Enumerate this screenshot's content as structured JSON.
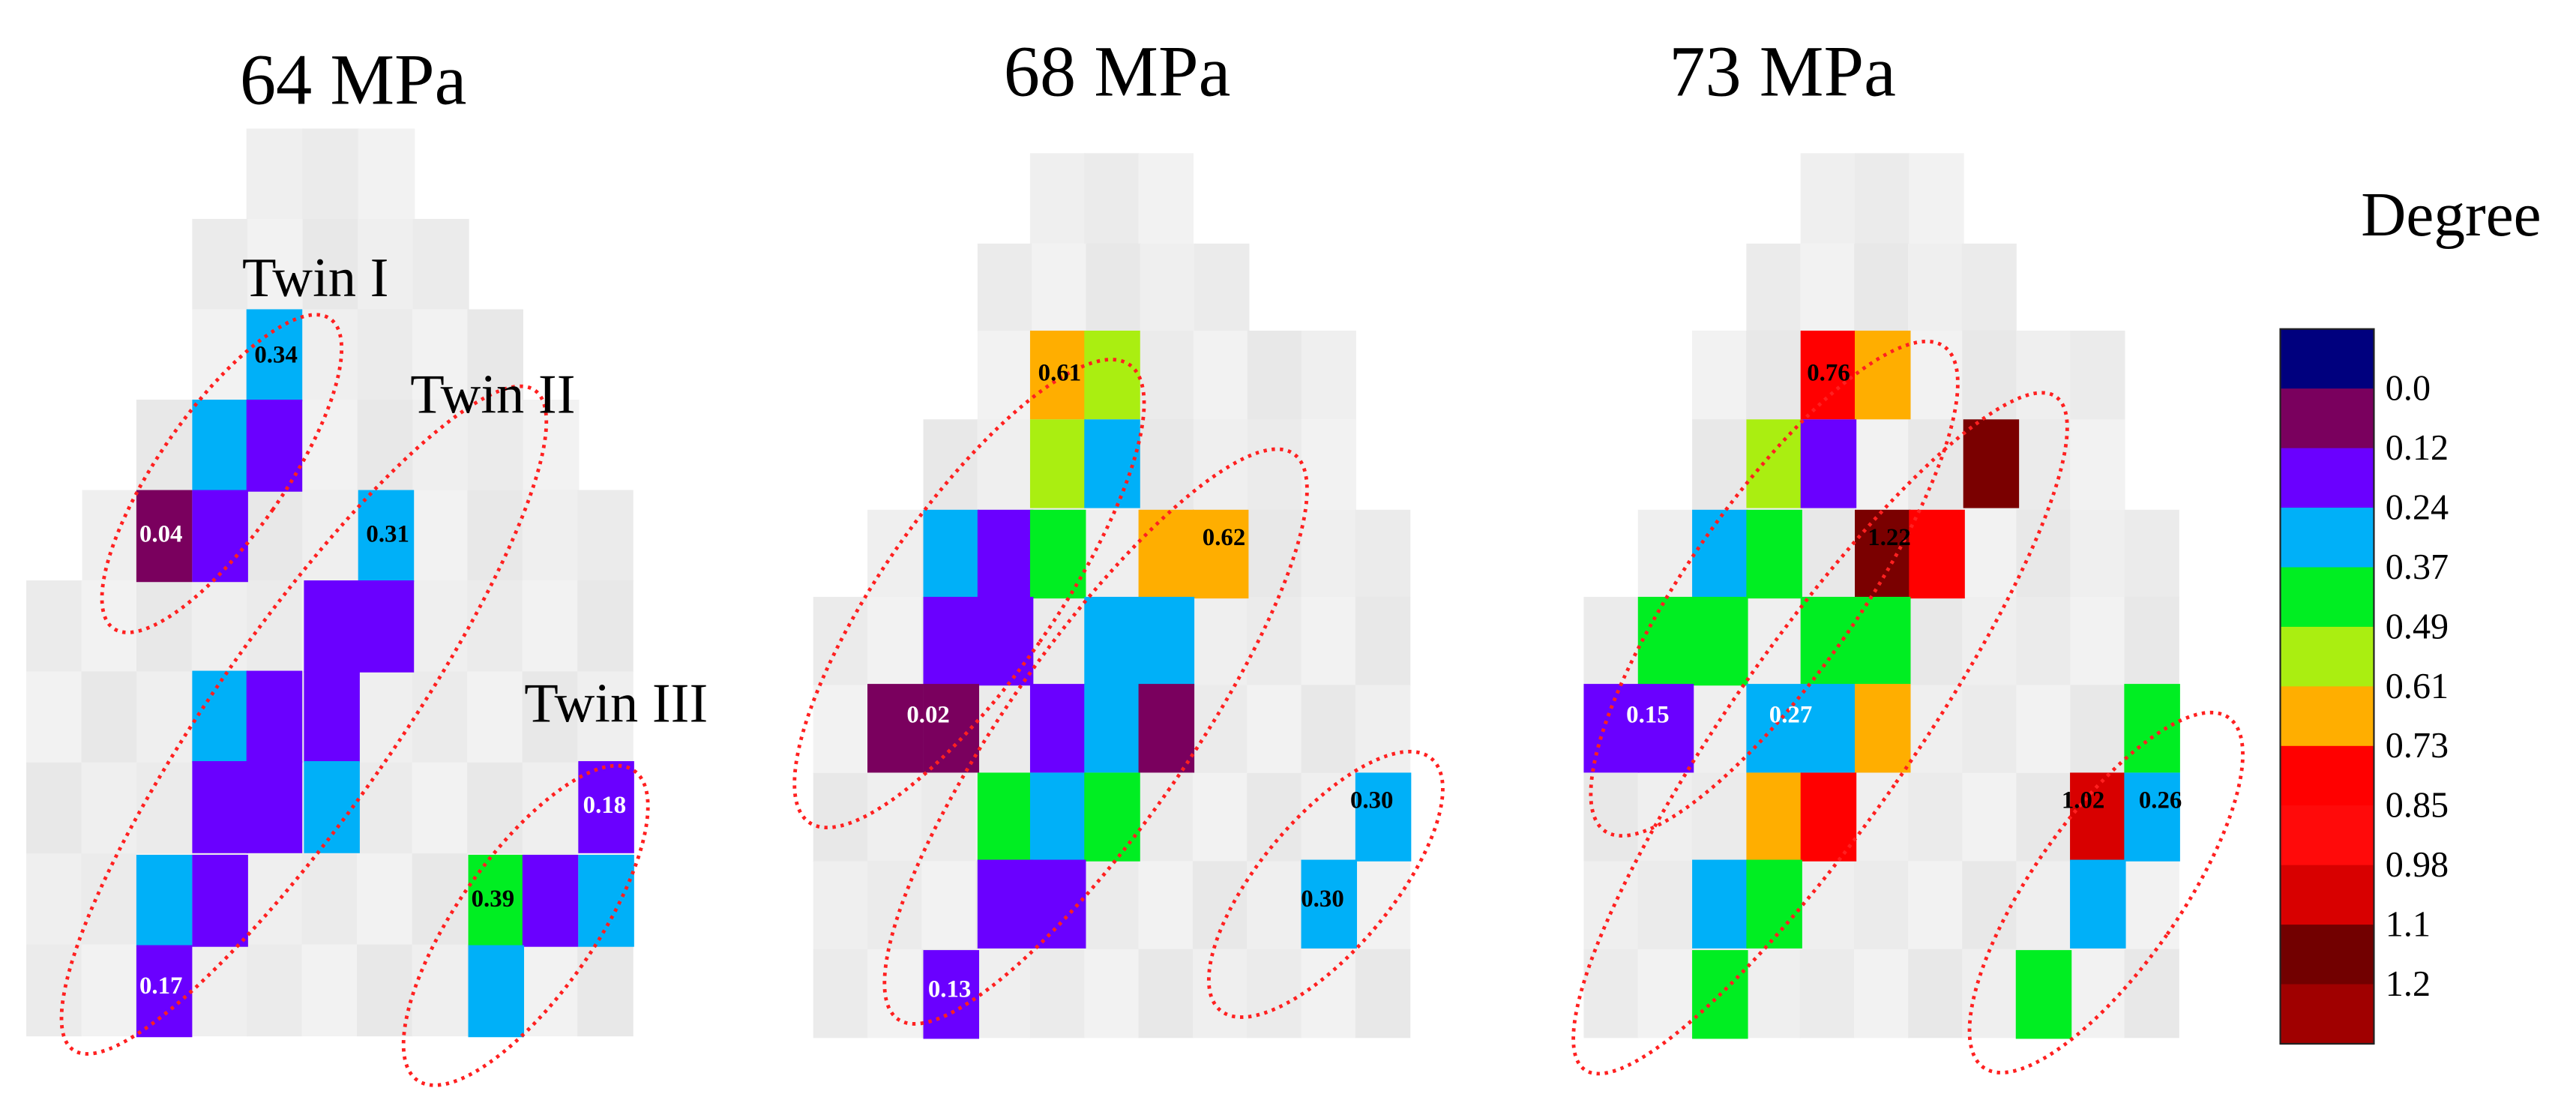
{
  "panels": [
    {
      "title": "64 MPa",
      "annotations": [
        "Twin I",
        "Twin II",
        "Twin III"
      ],
      "cell_labels": [
        "0.34",
        "0.04",
        "0.31",
        "0.18",
        "0.39",
        "0.17"
      ]
    },
    {
      "title": "68 MPa",
      "cell_labels": [
        "0.61",
        "0.62",
        "0.02",
        "0.30",
        "0.30",
        "0.13"
      ]
    },
    {
      "title": "73 MPa",
      "cell_labels": [
        "0.76",
        "1.22",
        "0.15",
        "0.27",
        "1.02",
        "0.26"
      ]
    }
  ],
  "colorbar": {
    "title": "Degree",
    "labels": [
      "0.0",
      "0.12",
      "0.24",
      "0.37",
      "0.49",
      "0.61",
      "0.73",
      "0.85",
      "0.98",
      "1.1",
      "1.2"
    ]
  }
}
